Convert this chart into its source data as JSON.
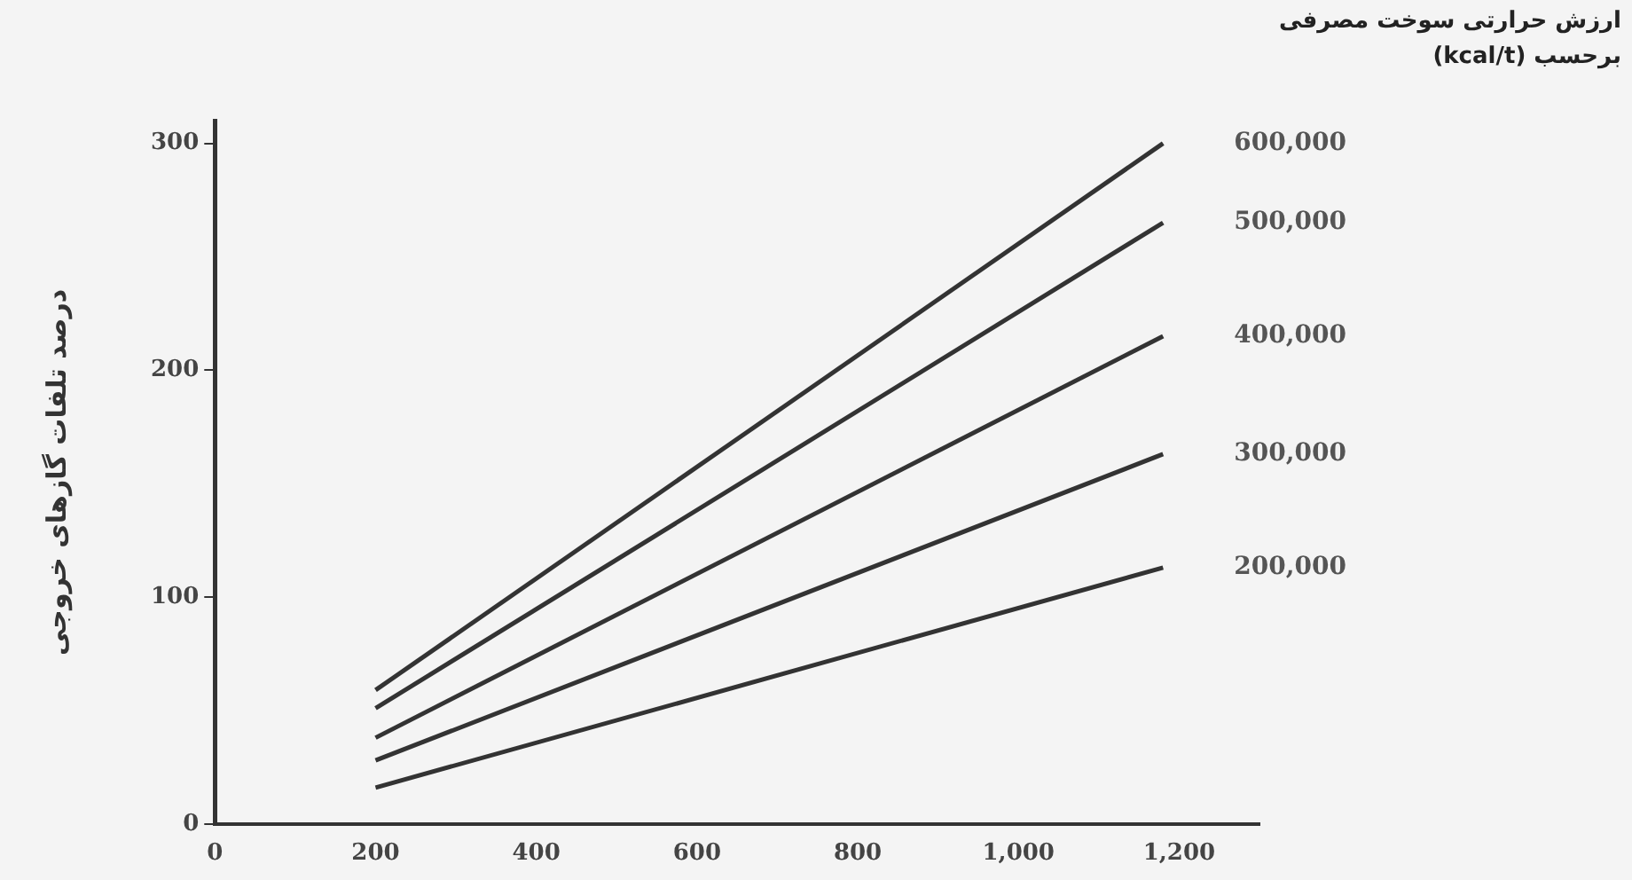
{
  "chart_data": {
    "type": "line",
    "ylabel": "درصد تلفات گازهای خروجی",
    "legend_title": "ارزش حرارتی سوخت مصرفی برحسب (kcal/t)",
    "xlim": [
      0,
      1300
    ],
    "xticks": [
      0,
      200,
      400,
      600,
      800,
      {
        "value": 1000,
        "label": "1,000"
      },
      {
        "value": 1200,
        "label": "1,200"
      }
    ],
    "ylim": [
      0,
      310
    ],
    "yticks": [
      0,
      100,
      200,
      300
    ],
    "grid": false,
    "marker": "none",
    "line_style": "solid",
    "x": [
      200,
      1180
    ],
    "series": [
      {
        "name": "600,000",
        "color": "#333333",
        "values": [
          59,
          300
        ]
      },
      {
        "name": "500,000",
        "color": "#333333",
        "values": [
          51,
          265
        ]
      },
      {
        "name": "400,000",
        "color": "#333333",
        "values": [
          38,
          215
        ]
      },
      {
        "name": "300,000",
        "color": "#333333",
        "values": [
          28,
          163
        ]
      },
      {
        "name": "200,000",
        "color": "#333333",
        "values": [
          16,
          113
        ]
      }
    ]
  }
}
